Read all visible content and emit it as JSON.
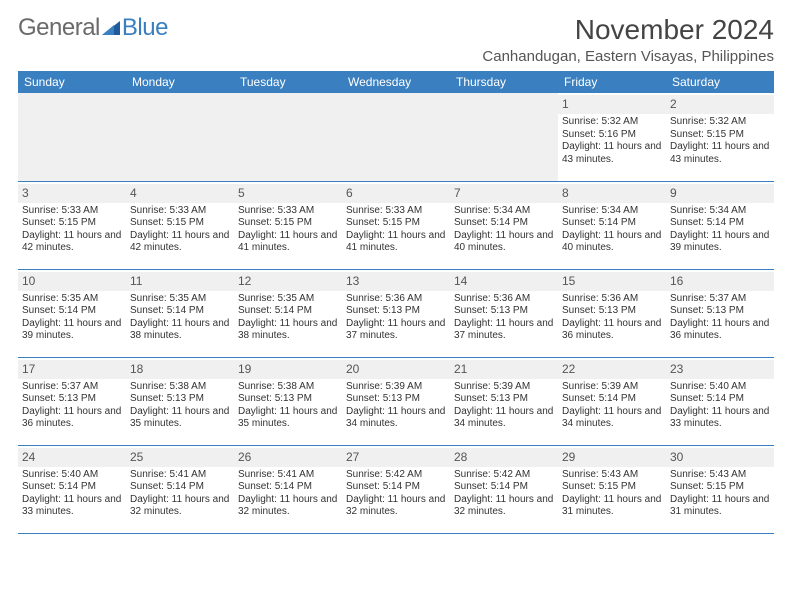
{
  "brand": {
    "part1": "General",
    "part2": "Blue"
  },
  "title": "November 2024",
  "location": "Canhandugan, Eastern Visayas, Philippines",
  "colors": {
    "header_bg": "#3a7fbf",
    "header_text": "#ffffff",
    "shade_bg": "#f0f0f0",
    "border": "#3a7fbf",
    "text": "#333333",
    "title_text": "#444444"
  },
  "dow": [
    "Sunday",
    "Monday",
    "Tuesday",
    "Wednesday",
    "Thursday",
    "Friday",
    "Saturday"
  ],
  "label_sunrise": "Sunrise: ",
  "label_sunset": "Sunset: ",
  "label_daylight_prefix": "Daylight: ",
  "label_daylight_join": " and ",
  "label_daylight_suffix": ".",
  "weeks": [
    [
      null,
      null,
      null,
      null,
      null,
      {
        "n": "1",
        "rise": "5:32 AM",
        "set": "5:16 PM",
        "h": "11 hours",
        "m": "43 minutes"
      },
      {
        "n": "2",
        "rise": "5:32 AM",
        "set": "5:15 PM",
        "h": "11 hours",
        "m": "43 minutes"
      }
    ],
    [
      {
        "n": "3",
        "rise": "5:33 AM",
        "set": "5:15 PM",
        "h": "11 hours",
        "m": "42 minutes"
      },
      {
        "n": "4",
        "rise": "5:33 AM",
        "set": "5:15 PM",
        "h": "11 hours",
        "m": "42 minutes"
      },
      {
        "n": "5",
        "rise": "5:33 AM",
        "set": "5:15 PM",
        "h": "11 hours",
        "m": "41 minutes"
      },
      {
        "n": "6",
        "rise": "5:33 AM",
        "set": "5:15 PM",
        "h": "11 hours",
        "m": "41 minutes"
      },
      {
        "n": "7",
        "rise": "5:34 AM",
        "set": "5:14 PM",
        "h": "11 hours",
        "m": "40 minutes"
      },
      {
        "n": "8",
        "rise": "5:34 AM",
        "set": "5:14 PM",
        "h": "11 hours",
        "m": "40 minutes"
      },
      {
        "n": "9",
        "rise": "5:34 AM",
        "set": "5:14 PM",
        "h": "11 hours",
        "m": "39 minutes"
      }
    ],
    [
      {
        "n": "10",
        "rise": "5:35 AM",
        "set": "5:14 PM",
        "h": "11 hours",
        "m": "39 minutes"
      },
      {
        "n": "11",
        "rise": "5:35 AM",
        "set": "5:14 PM",
        "h": "11 hours",
        "m": "38 minutes"
      },
      {
        "n": "12",
        "rise": "5:35 AM",
        "set": "5:14 PM",
        "h": "11 hours",
        "m": "38 minutes"
      },
      {
        "n": "13",
        "rise": "5:36 AM",
        "set": "5:13 PM",
        "h": "11 hours",
        "m": "37 minutes"
      },
      {
        "n": "14",
        "rise": "5:36 AM",
        "set": "5:13 PM",
        "h": "11 hours",
        "m": "37 minutes"
      },
      {
        "n": "15",
        "rise": "5:36 AM",
        "set": "5:13 PM",
        "h": "11 hours",
        "m": "36 minutes"
      },
      {
        "n": "16",
        "rise": "5:37 AM",
        "set": "5:13 PM",
        "h": "11 hours",
        "m": "36 minutes"
      }
    ],
    [
      {
        "n": "17",
        "rise": "5:37 AM",
        "set": "5:13 PM",
        "h": "11 hours",
        "m": "36 minutes"
      },
      {
        "n": "18",
        "rise": "5:38 AM",
        "set": "5:13 PM",
        "h": "11 hours",
        "m": "35 minutes"
      },
      {
        "n": "19",
        "rise": "5:38 AM",
        "set": "5:13 PM",
        "h": "11 hours",
        "m": "35 minutes"
      },
      {
        "n": "20",
        "rise": "5:39 AM",
        "set": "5:13 PM",
        "h": "11 hours",
        "m": "34 minutes"
      },
      {
        "n": "21",
        "rise": "5:39 AM",
        "set": "5:13 PM",
        "h": "11 hours",
        "m": "34 minutes"
      },
      {
        "n": "22",
        "rise": "5:39 AM",
        "set": "5:14 PM",
        "h": "11 hours",
        "m": "34 minutes"
      },
      {
        "n": "23",
        "rise": "5:40 AM",
        "set": "5:14 PM",
        "h": "11 hours",
        "m": "33 minutes"
      }
    ],
    [
      {
        "n": "24",
        "rise": "5:40 AM",
        "set": "5:14 PM",
        "h": "11 hours",
        "m": "33 minutes"
      },
      {
        "n": "25",
        "rise": "5:41 AM",
        "set": "5:14 PM",
        "h": "11 hours",
        "m": "32 minutes"
      },
      {
        "n": "26",
        "rise": "5:41 AM",
        "set": "5:14 PM",
        "h": "11 hours",
        "m": "32 minutes"
      },
      {
        "n": "27",
        "rise": "5:42 AM",
        "set": "5:14 PM",
        "h": "11 hours",
        "m": "32 minutes"
      },
      {
        "n": "28",
        "rise": "5:42 AM",
        "set": "5:14 PM",
        "h": "11 hours",
        "m": "32 minutes"
      },
      {
        "n": "29",
        "rise": "5:43 AM",
        "set": "5:15 PM",
        "h": "11 hours",
        "m": "31 minutes"
      },
      {
        "n": "30",
        "rise": "5:43 AM",
        "set": "5:15 PM",
        "h": "11 hours",
        "m": "31 minutes"
      }
    ]
  ]
}
